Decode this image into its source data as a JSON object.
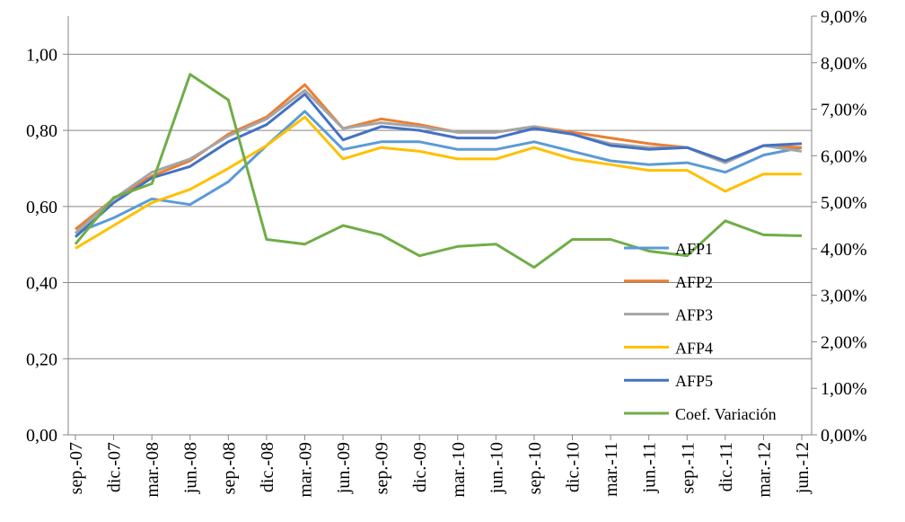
{
  "chart_data": {
    "type": "line",
    "categories": [
      "sep.-07",
      "dic.-07",
      "mar.-08",
      "jun.-08",
      "sep.-08",
      "dic.-08",
      "mar.-09",
      "jun.-09",
      "sep.-09",
      "dic.-09",
      "mar.-10",
      "jun.-10",
      "sep.-10",
      "dic.-10",
      "mar.-11",
      "jun.-11",
      "sep.-11",
      "dic.-11",
      "mar.-12",
      "jun.-12"
    ],
    "series": [
      {
        "name": "AFP1",
        "color": "#5b9bd5",
        "values": [
          0.53,
          0.57,
          0.62,
          0.605,
          0.665,
          0.76,
          0.85,
          0.75,
          0.77,
          0.77,
          0.75,
          0.75,
          0.77,
          0.745,
          0.72,
          0.71,
          0.715,
          0.69,
          0.735,
          0.755
        ]
      },
      {
        "name": "AFP2",
        "color": "#ed7d31",
        "values": [
          0.54,
          0.62,
          0.68,
          0.72,
          0.79,
          0.835,
          0.92,
          0.805,
          0.83,
          0.815,
          0.795,
          0.795,
          0.81,
          0.795,
          0.78,
          0.765,
          0.755,
          0.715,
          0.76,
          0.755
        ]
      },
      {
        "name": "AFP3",
        "color": "#a5a5a5",
        "values": [
          0.53,
          0.62,
          0.69,
          0.725,
          0.785,
          0.83,
          0.905,
          0.805,
          0.82,
          0.81,
          0.795,
          0.795,
          0.81,
          0.79,
          0.765,
          0.755,
          0.755,
          0.715,
          0.76,
          0.745
        ]
      },
      {
        "name": "AFP4",
        "color": "#ffc000",
        "values": [
          0.49,
          0.55,
          0.61,
          0.645,
          0.7,
          0.76,
          0.835,
          0.725,
          0.755,
          0.745,
          0.725,
          0.725,
          0.755,
          0.725,
          0.71,
          0.695,
          0.695,
          0.64,
          0.685,
          0.685
        ]
      },
      {
        "name": "AFP5",
        "color": "#4472c4",
        "values": [
          0.52,
          0.61,
          0.675,
          0.705,
          0.77,
          0.815,
          0.895,
          0.775,
          0.81,
          0.8,
          0.78,
          0.78,
          0.805,
          0.79,
          0.76,
          0.75,
          0.755,
          0.72,
          0.76,
          0.765
        ]
      },
      {
        "name": "Coef. Variación",
        "color": "#70ad47",
        "axis": "y2",
        "values": [
          4.1,
          5.1,
          5.4,
          7.75,
          7.2,
          4.2,
          4.1,
          4.5,
          4.3,
          3.85,
          4.05,
          4.1,
          3.6,
          4.2,
          4.2,
          3.95,
          3.85,
          4.6,
          4.3,
          4.28
        ]
      }
    ],
    "ylim": [
      0,
      1.1
    ],
    "yticks": [
      {
        "value": 0,
        "label": "0,00"
      },
      {
        "value": 0.2,
        "label": "0,20"
      },
      {
        "value": 0.4,
        "label": "0,40"
      },
      {
        "value": 0.6,
        "label": "0,60"
      },
      {
        "value": 0.8,
        "label": "0,80"
      },
      {
        "value": 1.0,
        "label": "1,00"
      }
    ],
    "y2lim": [
      0,
      9
    ],
    "y2ticks": [
      {
        "value": 0,
        "label": "0,00%"
      },
      {
        "value": 1,
        "label": "1,00%"
      },
      {
        "value": 2,
        "label": "2,00%"
      },
      {
        "value": 3,
        "label": "3,00%"
      },
      {
        "value": 4,
        "label": "4,00%"
      },
      {
        "value": 5,
        "label": "5,00%"
      },
      {
        "value": 6,
        "label": "6,00%"
      },
      {
        "value": 7,
        "label": "7,00%"
      },
      {
        "value": 8,
        "label": "8,00%"
      },
      {
        "value": 9,
        "label": "9,00%"
      }
    ],
    "grid": true
  }
}
